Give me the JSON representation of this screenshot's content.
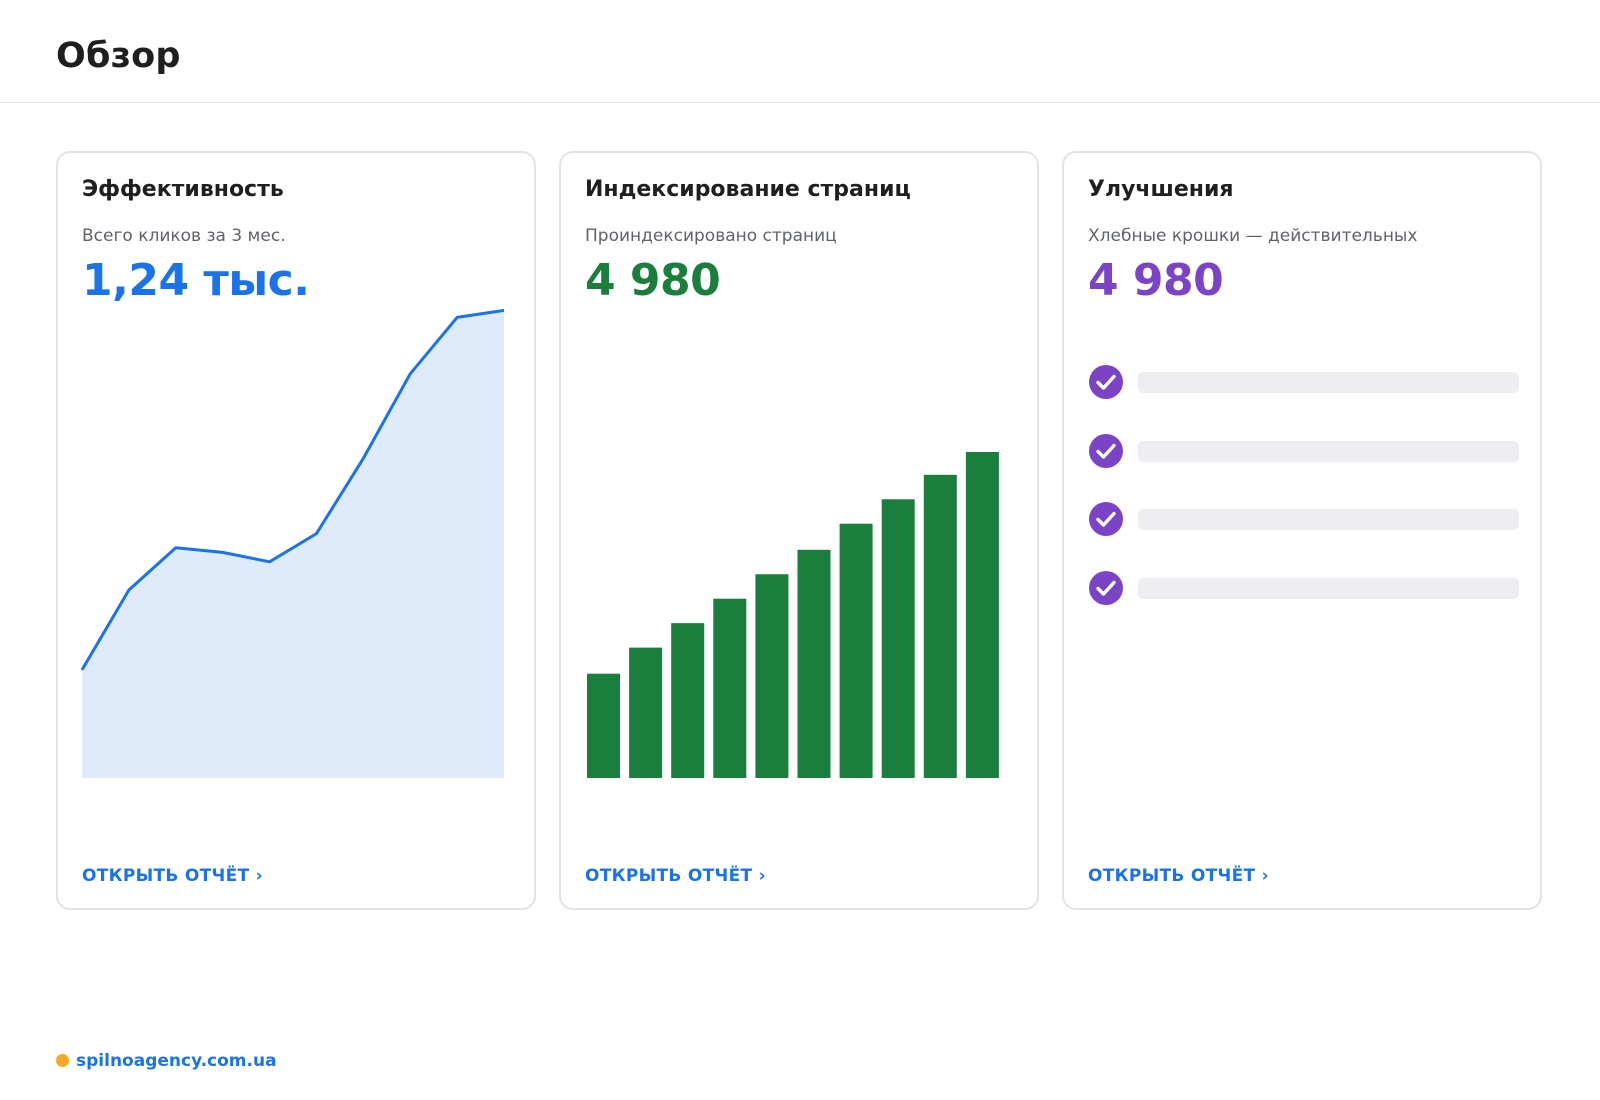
{
  "header": {
    "title": "Обзор"
  },
  "colors": {
    "performance": "#1a73e8",
    "performance_fill": "#dfeafb",
    "indexing": "#1a7f3c",
    "improvements": "#7b44c7",
    "link": "#1a73e8",
    "skeleton": "#eeeef2",
    "brand_dot": "#f9a825"
  },
  "cards": [
    {
      "title": "Эффективность",
      "subtitle": "Всего кликов за 3 мес.",
      "value": "1,24 тыс.",
      "link": "ОТКРЫТЬ ОТЧЁТ ›"
    },
    {
      "title": "Индексирование страниц",
      "subtitle": "Проиндексировано страниц",
      "value": "4 980",
      "link": "ОТКРЫТЬ ОТЧЁТ ›"
    },
    {
      "title": "Улучшения",
      "subtitle": "Хлебные крошки — действительных",
      "value": "4 980",
      "link": "ОТКРЫТЬ ОТЧЁТ ›",
      "items_icon": "check-circle-icon",
      "items_count": 4
    }
  ],
  "chart_data": [
    {
      "type": "area",
      "x": [
        1,
        2,
        3,
        4,
        5,
        6,
        7,
        8,
        9,
        10
      ],
      "values": [
        23,
        40,
        49,
        48,
        46,
        52,
        68,
        86,
        98,
        99.5
      ],
      "ylim": [
        0,
        100
      ],
      "grid": false
    },
    {
      "type": "bar",
      "categories": [
        "1",
        "2",
        "3",
        "4",
        "5",
        "6",
        "7",
        "8",
        "9",
        "10"
      ],
      "values": [
        32,
        40,
        47.5,
        55,
        62.5,
        70,
        78,
        85.5,
        93,
        100
      ],
      "ylim": [
        0,
        100
      ],
      "grid": false
    }
  ],
  "footer": {
    "site": "spilnoagency.com.ua"
  }
}
